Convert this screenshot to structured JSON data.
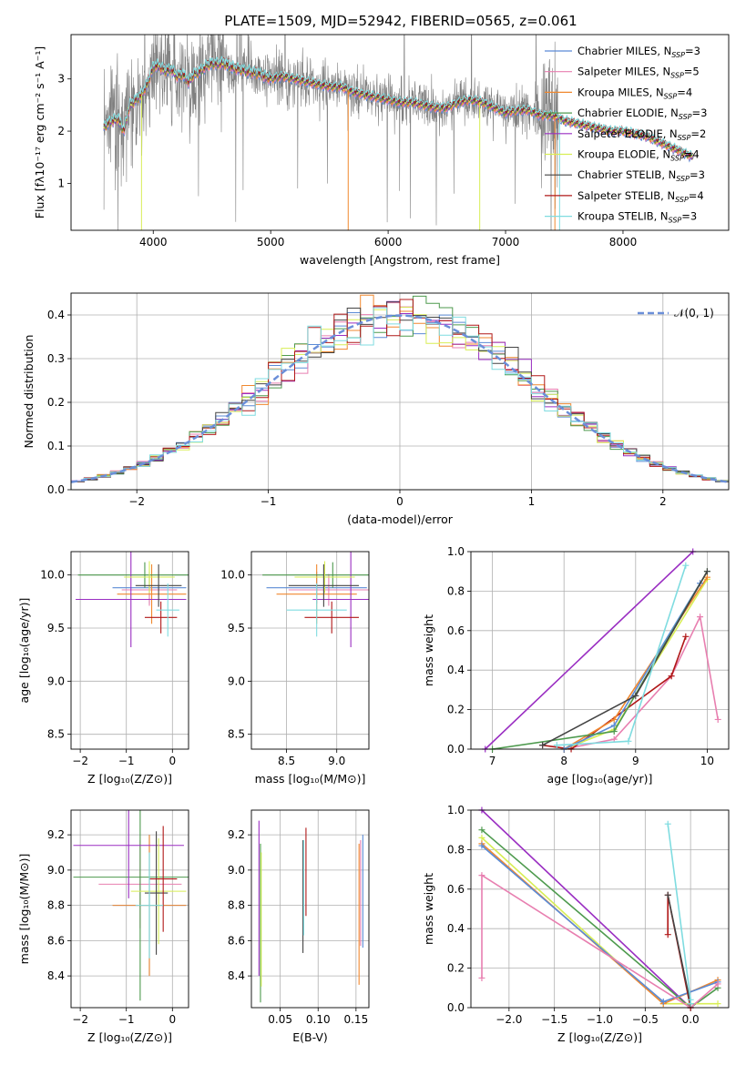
{
  "figure": {
    "title": "PLATE=1509, MJD=52942, FIBERID=0565, z=0.061"
  },
  "colors": {
    "data": "#808080",
    "chabrier_miles": "#5b8bd6",
    "salpeter_miles": "#e87fb0",
    "kroupa_miles": "#f0882f",
    "chabrier_elodie": "#4e9a4e",
    "salpeter_elodie": "#9a2ec2",
    "kroupa_elodie": "#d8ee55",
    "chabrier_stelib": "#444444",
    "salpeter_stelib": "#b01818",
    "kroupa_stelib": "#7fdce0",
    "normal": "#6b8fd9"
  },
  "chart_data": [
    {
      "id": "spectrum",
      "type": "line",
      "xlabel": "wavelength [Angstrom, rest frame]",
      "ylabel": "Flux [fλ10⁻¹⁷ erg cm⁻² s⁻¹ A⁻¹]",
      "xlim": [
        3300,
        8900
      ],
      "ylim": [
        0.1,
        3.85
      ],
      "xticks": [
        "4000",
        "5000",
        "6000",
        "7000",
        "8000"
      ],
      "yticks": [
        "1",
        "2",
        "3"
      ],
      "grid": false,
      "legend_position": "top-right",
      "continuum": {
        "x": [
          3580,
          3650,
          3700,
          3750,
          3800,
          3850,
          3900,
          3950,
          4000,
          4050,
          4100,
          4150,
          4200,
          4250,
          4300,
          4350,
          4400,
          4450,
          4500,
          4600,
          4700,
          4800,
          4900,
          5000,
          5100,
          5200,
          5300,
          5400,
          5500,
          5600,
          5700,
          5800,
          5900,
          6000,
          6100,
          6200,
          6300,
          6400,
          6500,
          6600,
          6700,
          6800,
          6900,
          7000,
          7100,
          7200,
          7300,
          7400,
          7500,
          7600,
          7700,
          7800,
          7900,
          8000,
          8100,
          8200,
          8300,
          8400,
          8500,
          8600
        ],
        "y": [
          2.1,
          2.2,
          2.25,
          2.0,
          2.5,
          2.6,
          2.7,
          2.9,
          3.25,
          3.25,
          3.15,
          3.2,
          3.05,
          3.1,
          2.95,
          3.1,
          3.15,
          3.25,
          3.3,
          3.3,
          3.2,
          3.15,
          3.1,
          3.0,
          3.05,
          3.0,
          2.95,
          2.9,
          2.85,
          2.85,
          2.75,
          2.7,
          2.65,
          2.6,
          2.55,
          2.55,
          2.5,
          2.45,
          2.45,
          2.55,
          2.6,
          2.55,
          2.45,
          2.35,
          2.4,
          2.4,
          2.3,
          2.3,
          2.2,
          2.15,
          2.1,
          2.05,
          2.0,
          2.0,
          1.95,
          1.9,
          1.8,
          1.7,
          1.6,
          1.5
        ]
      },
      "series": [
        {
          "name": "Chabrier MILES, N$_{SSP}$=3",
          "label": "Chabrier MILES, N",
          "sub": "SSP",
          "tail": "=3",
          "color_key": "chabrier_miles"
        },
        {
          "name": "Salpeter MILES, N$_{SSP}$=5",
          "label": "Salpeter MILES, N",
          "sub": "SSP",
          "tail": "=5",
          "color_key": "salpeter_miles"
        },
        {
          "name": "Kroupa MILES, N$_{SSP}$=4",
          "label": "Kroupa MILES, N",
          "sub": "SSP",
          "tail": "=4",
          "color_key": "kroupa_miles"
        },
        {
          "name": "Chabrier ELODIE, N$_{SSP}$=3",
          "label": "Chabrier ELODIE, N",
          "sub": "SSP",
          "tail": "=3",
          "color_key": "chabrier_elodie"
        },
        {
          "name": "Salpeter ELODIE, N$_{SSP}$=2",
          "label": "Salpeter ELODIE, N",
          "sub": "SSP",
          "tail": "=2",
          "color_key": "salpeter_elodie"
        },
        {
          "name": "Kroupa ELODIE, N$_{SSP}$=4",
          "label": "Kroupa ELODIE, N",
          "sub": "SSP",
          "tail": "=4",
          "color_key": "kroupa_elodie"
        },
        {
          "name": "Chabrier STELIB, N$_{SSP}$=3",
          "label": "Chabrier STELIB, N",
          "sub": "SSP",
          "tail": "=3",
          "color_key": "chabrier_stelib"
        },
        {
          "name": "Salpeter STELIB, N$_{SSP}$=4",
          "label": "Salpeter STELIB, N",
          "sub": "SSP",
          "tail": "=4",
          "color_key": "salpeter_stelib"
        },
        {
          "name": "Kroupa STELIB, N$_{SSP}$=3",
          "label": "Kroupa STELIB, N",
          "sub": "SSP",
          "tail": "=3",
          "color_key": "kroupa_stelib"
        }
      ]
    },
    {
      "id": "residuals",
      "type": "histogram",
      "xlabel": "(data-model)/error",
      "ylabel": "Normed distribution",
      "xlim": [
        -2.5,
        2.5
      ],
      "ylim": [
        0,
        0.45
      ],
      "xticks": [
        -2,
        -1,
        0,
        1,
        2
      ],
      "xtick_labels": [
        "−2",
        "−1",
        "0",
        "1",
        "2"
      ],
      "yticks": [
        0,
        0.1,
        0.2,
        0.3,
        0.4
      ],
      "ytick_labels": [
        "0.0",
        "0.1",
        "0.2",
        "0.3",
        "0.4"
      ],
      "grid": true,
      "bin_width": 0.1,
      "reference_curve": {
        "name": "N(0, 1)",
        "mean": 0,
        "sigma": 1,
        "color_key": "normal"
      },
      "legend_label": "𝒩(0, 1)",
      "legend_position": "top-right"
    },
    {
      "id": "age_vs_Z",
      "type": "errorbar",
      "xlabel": "Z [log₁₀(Z/Z⊙)]",
      "ylabel": "age  [log₁₀(age/yr)]",
      "xlim": [
        -2.2,
        0.35
      ],
      "ylim": [
        8.36,
        10.22
      ],
      "xticks": [
        -2,
        -1,
        0
      ],
      "xtick_labels": [
        "−2",
        "−1",
        "0"
      ],
      "yticks": [
        8.5,
        9.0,
        9.5,
        10.0
      ],
      "ytick_labels": [
        "8.5",
        "9.0",
        "9.5",
        "10.0"
      ],
      "grid": true,
      "points": [
        {
          "color_key": "chabrier_miles",
          "x": -0.5,
          "xerr": 0.8,
          "y": 9.88,
          "yerr": 0.15
        },
        {
          "color_key": "salpeter_miles",
          "x": -0.5,
          "xerr": 0.6,
          "y": 9.86,
          "yerr": 0.15
        },
        {
          "color_key": "kroupa_miles",
          "x": -0.45,
          "xerr": 0.75,
          "y": 9.82,
          "yerr": 0.28
        },
        {
          "color_key": "chabrier_elodie",
          "x": -0.6,
          "xerr": 1.45,
          "y": 10.0,
          "yerr": 0.12
        },
        {
          "color_key": "salpeter_elodie",
          "x": -0.9,
          "xerr": 1.2,
          "y": 9.77,
          "yerr": 0.45
        },
        {
          "color_key": "kroupa_elodie",
          "x": -0.5,
          "xerr": 0.55,
          "y": 9.98,
          "yerr": 0.15
        },
        {
          "color_key": "chabrier_stelib",
          "x": -0.3,
          "xerr": 0.5,
          "y": 9.9,
          "yerr": 0.2
        },
        {
          "color_key": "salpeter_stelib",
          "x": -0.25,
          "xerr": 0.35,
          "y": 9.6,
          "yerr": 0.15
        },
        {
          "color_key": "kroupa_stelib",
          "x": -0.1,
          "xerr": 0.25,
          "y": 9.67,
          "yerr": 0.25
        }
      ]
    },
    {
      "id": "age_vs_mass",
      "type": "errorbar",
      "xlabel": "mass [log₁₀(M/M⊙)]",
      "ylabel": "",
      "xlim": [
        8.15,
        9.32
      ],
      "ylim": [
        8.36,
        10.22
      ],
      "xticks": [
        8.5,
        9.0
      ],
      "xtick_labels": [
        "8.5",
        "9.0"
      ],
      "yticks": [
        8.5,
        9.0,
        9.5,
        10.0
      ],
      "ytick_labels": [
        "8.5",
        "9.0",
        "9.5",
        "10.0"
      ],
      "grid": true,
      "points": [
        {
          "color_key": "chabrier_miles",
          "x": 8.8,
          "xerr": 0.5,
          "y": 9.88,
          "yerr": 0.15
        },
        {
          "color_key": "salpeter_miles",
          "x": 8.92,
          "xerr": 0.4,
          "y": 9.86,
          "yerr": 0.15
        },
        {
          "color_key": "kroupa_miles",
          "x": 8.8,
          "xerr": 0.4,
          "y": 9.82,
          "yerr": 0.28
        },
        {
          "color_key": "chabrier_elodie",
          "x": 8.96,
          "xerr": 0.7,
          "y": 10.0,
          "yerr": 0.12
        },
        {
          "color_key": "salpeter_elodie",
          "x": 9.14,
          "xerr": 0.38,
          "y": 9.77,
          "yerr": 0.45
        },
        {
          "color_key": "kroupa_elodie",
          "x": 8.88,
          "xerr": 0.3,
          "y": 9.98,
          "yerr": 0.15
        },
        {
          "color_key": "chabrier_stelib",
          "x": 8.87,
          "xerr": 0.35,
          "y": 9.9,
          "yerr": 0.2
        },
        {
          "color_key": "salpeter_stelib",
          "x": 8.95,
          "xerr": 0.27,
          "y": 9.6,
          "yerr": 0.15
        },
        {
          "color_key": "kroupa_stelib",
          "x": 8.8,
          "xerr": 0.3,
          "y": 9.67,
          "yerr": 0.25
        }
      ]
    },
    {
      "id": "weight_vs_age",
      "type": "line",
      "xlabel": "age  [log₁₀(age/yr)]",
      "ylabel": "mass weight",
      "xlim": [
        6.7,
        10.3
      ],
      "ylim": [
        0,
        1.0
      ],
      "xticks": [
        7,
        8,
        9,
        10
      ],
      "xtick_labels": [
        "7",
        "8",
        "9",
        "10"
      ],
      "yticks": [
        0,
        0.2,
        0.4,
        0.6,
        0.8,
        1.0
      ],
      "ytick_labels": [
        "0.0",
        "0.2",
        "0.4",
        "0.6",
        "0.8",
        "1.0"
      ],
      "grid": true,
      "series": [
        {
          "color_key": "salpeter_elodie",
          "x": [
            6.9,
            9.8
          ],
          "y": [
            0.0,
            1.0
          ]
        },
        {
          "color_key": "salpeter_miles",
          "x": [
            8.0,
            8.7,
            9.5,
            9.9,
            10.15
          ],
          "y": [
            0.0,
            0.05,
            0.37,
            0.67,
            0.15
          ]
        },
        {
          "color_key": "salpeter_stelib",
          "x": [
            7.7,
            8.1,
            9.5,
            9.7
          ],
          "y": [
            0.02,
            0.0,
            0.37,
            0.57
          ]
        },
        {
          "color_key": "kroupa_elodie",
          "x": [
            8.0,
            8.7,
            10.0
          ],
          "y": [
            0.0,
            0.1,
            0.86
          ]
        },
        {
          "color_key": "kroupa_miles",
          "x": [
            8.0,
            8.7,
            10.0
          ],
          "y": [
            0.0,
            0.15,
            0.87
          ]
        },
        {
          "color_key": "chabrier_miles",
          "x": [
            8.0,
            8.7,
            9.9
          ],
          "y": [
            0.0,
            0.12,
            0.84
          ]
        },
        {
          "color_key": "chabrier_elodie",
          "x": [
            7.0,
            8.7,
            10.0
          ],
          "y": [
            0.0,
            0.09,
            0.9
          ]
        },
        {
          "color_key": "chabrier_stelib",
          "x": [
            7.7,
            9.0,
            10.0
          ],
          "y": [
            0.02,
            0.27,
            0.9
          ]
        },
        {
          "color_key": "kroupa_stelib",
          "x": [
            7.9,
            8.9,
            9.7
          ],
          "y": [
            0.02,
            0.04,
            0.93
          ]
        }
      ]
    },
    {
      "id": "mass_vs_Z",
      "type": "errorbar",
      "xlabel": "Z [log₁₀(Z/Z⊙)]",
      "ylabel": "mass [log₁₀(M/M⊙)]",
      "xlim": [
        -2.2,
        0.35
      ],
      "ylim": [
        8.22,
        9.34
      ],
      "xticks": [
        -2,
        -1,
        0
      ],
      "xtick_labels": [
        "−2",
        "−1",
        "0"
      ],
      "yticks": [
        8.4,
        8.6,
        8.8,
        9.0,
        9.2
      ],
      "ytick_labels": [
        "8.4",
        "8.6",
        "8.8",
        "9.0",
        "9.2"
      ],
      "grid": true,
      "points": [
        {
          "color_key": "chabrier_miles",
          "x": -0.5,
          "xerr": 0.8,
          "y": 8.8,
          "yerr": 0.4
        },
        {
          "color_key": "salpeter_miles",
          "x": -0.7,
          "xerr": 0.9,
          "y": 8.92,
          "yerr": 0.25
        },
        {
          "color_key": "kroupa_miles",
          "x": -0.5,
          "xerr": 0.8,
          "y": 8.8,
          "yerr": 0.4
        },
        {
          "color_key": "chabrier_elodie",
          "x": -0.7,
          "xerr": 1.45,
          "y": 8.96,
          "yerr": 0.7
        },
        {
          "color_key": "salpeter_elodie",
          "x": -0.95,
          "xerr": 1.2,
          "y": 9.14,
          "yerr": 0.3
        },
        {
          "color_key": "kroupa_elodie",
          "x": -0.3,
          "xerr": 0.6,
          "y": 8.88,
          "yerr": 0.3
        },
        {
          "color_key": "chabrier_stelib",
          "x": -0.35,
          "xerr": 0.25,
          "y": 8.87,
          "yerr": 0.35
        },
        {
          "color_key": "salpeter_stelib",
          "x": -0.2,
          "xerr": 0.3,
          "y": 8.95,
          "yerr": 0.3
        },
        {
          "color_key": "kroupa_stelib",
          "x": -0.5,
          "xerr": 0.3,
          "y": 8.8,
          "yerr": 0.3
        }
      ]
    },
    {
      "id": "mass_vs_ebv",
      "type": "errorbar",
      "xlabel": "E(B-V)",
      "ylabel": "",
      "xlim": [
        0.012,
        0.167
      ],
      "ylim": [
        8.22,
        9.34
      ],
      "xticks": [
        0.05,
        0.1,
        0.15
      ],
      "xtick_labels": [
        "0.05",
        "0.10",
        "0.15"
      ],
      "yticks": [
        8.4,
        8.6,
        8.8,
        9.0,
        9.2
      ],
      "ytick_labels": [
        "8.4",
        "8.6",
        "8.8",
        "9.0",
        "9.2"
      ],
      "grid": true,
      "points": [
        {
          "color_key": "salpeter_elodie",
          "x": 0.022,
          "xerr": 0,
          "y": 8.84,
          "yerr": 0.44
        },
        {
          "color_key": "chabrier_elodie",
          "x": 0.024,
          "xerr": 0,
          "y": 8.7,
          "yerr": 0.45
        },
        {
          "color_key": "kroupa_elodie",
          "x": 0.025,
          "xerr": 0,
          "y": 8.72,
          "yerr": 0.38
        },
        {
          "color_key": "chabrier_stelib",
          "x": 0.08,
          "xerr": 0,
          "y": 8.85,
          "yerr": 0.32
        },
        {
          "color_key": "kroupa_stelib",
          "x": 0.081,
          "xerr": 0,
          "y": 8.9,
          "yerr": 0.27
        },
        {
          "color_key": "salpeter_stelib",
          "x": 0.084,
          "xerr": 0,
          "y": 8.99,
          "yerr": 0.25
        },
        {
          "color_key": "kroupa_miles",
          "x": 0.154,
          "xerr": 0,
          "y": 8.75,
          "yerr": 0.4
        },
        {
          "color_key": "salpeter_miles",
          "x": 0.156,
          "xerr": 0,
          "y": 8.87,
          "yerr": 0.3
        },
        {
          "color_key": "chabrier_miles",
          "x": 0.159,
          "xerr": 0,
          "y": 8.88,
          "yerr": 0.32
        }
      ]
    },
    {
      "id": "weight_vs_Z",
      "type": "line",
      "xlabel": "Z [log₁₀(Z/Z⊙)]",
      "ylabel": "mass weight",
      "xlim": [
        -2.42,
        0.42
      ],
      "ylim": [
        0,
        1.0
      ],
      "xticks": [
        -2.0,
        -1.5,
        -1.0,
        -0.5,
        0.0
      ],
      "xtick_labels": [
        "−2.0",
        "−1.5",
        "−1.0",
        "−0.5",
        "0.0"
      ],
      "yticks": [
        0,
        0.2,
        0.4,
        0.6,
        0.8,
        1.0
      ],
      "ytick_labels": [
        "0.0",
        "0.2",
        "0.4",
        "0.6",
        "0.8",
        "1.0"
      ],
      "grid": true,
      "series": [
        {
          "color_key": "salpeter_elodie",
          "x": [
            -2.3,
            0.0
          ],
          "y": [
            1.0,
            0.0
          ]
        },
        {
          "color_key": "chabrier_elodie",
          "x": [
            -2.3,
            0.0,
            0.3
          ],
          "y": [
            0.9,
            0.0,
            0.1
          ]
        },
        {
          "color_key": "kroupa_elodie",
          "x": [
            -2.3,
            -0.3,
            0.3
          ],
          "y": [
            0.86,
            0.02,
            0.02
          ]
        },
        {
          "color_key": "kroupa_miles",
          "x": [
            -2.3,
            -0.3,
            0.3
          ],
          "y": [
            0.83,
            0.02,
            0.14
          ]
        },
        {
          "color_key": "chabrier_miles",
          "x": [
            -2.3,
            -0.3,
            0.3
          ],
          "y": [
            0.82,
            0.03,
            0.13
          ]
        },
        {
          "color_key": "salpeter_miles",
          "x": [
            -2.3,
            -2.3,
            0.0,
            0.3
          ],
          "y": [
            0.15,
            0.67,
            0.0,
            0.12
          ]
        },
        {
          "color_key": "salpeter_stelib",
          "x": [
            -0.25,
            -0.25,
            0.0
          ],
          "y": [
            0.37,
            0.57,
            0.0
          ]
        },
        {
          "color_key": "chabrier_stelib",
          "x": [
            -0.25,
            0.0
          ],
          "y": [
            0.57,
            0.02
          ]
        },
        {
          "color_key": "kroupa_stelib",
          "x": [
            -0.25,
            0.0,
            0.0
          ],
          "y": [
            0.93,
            0.04,
            0.02
          ]
        }
      ]
    }
  ]
}
